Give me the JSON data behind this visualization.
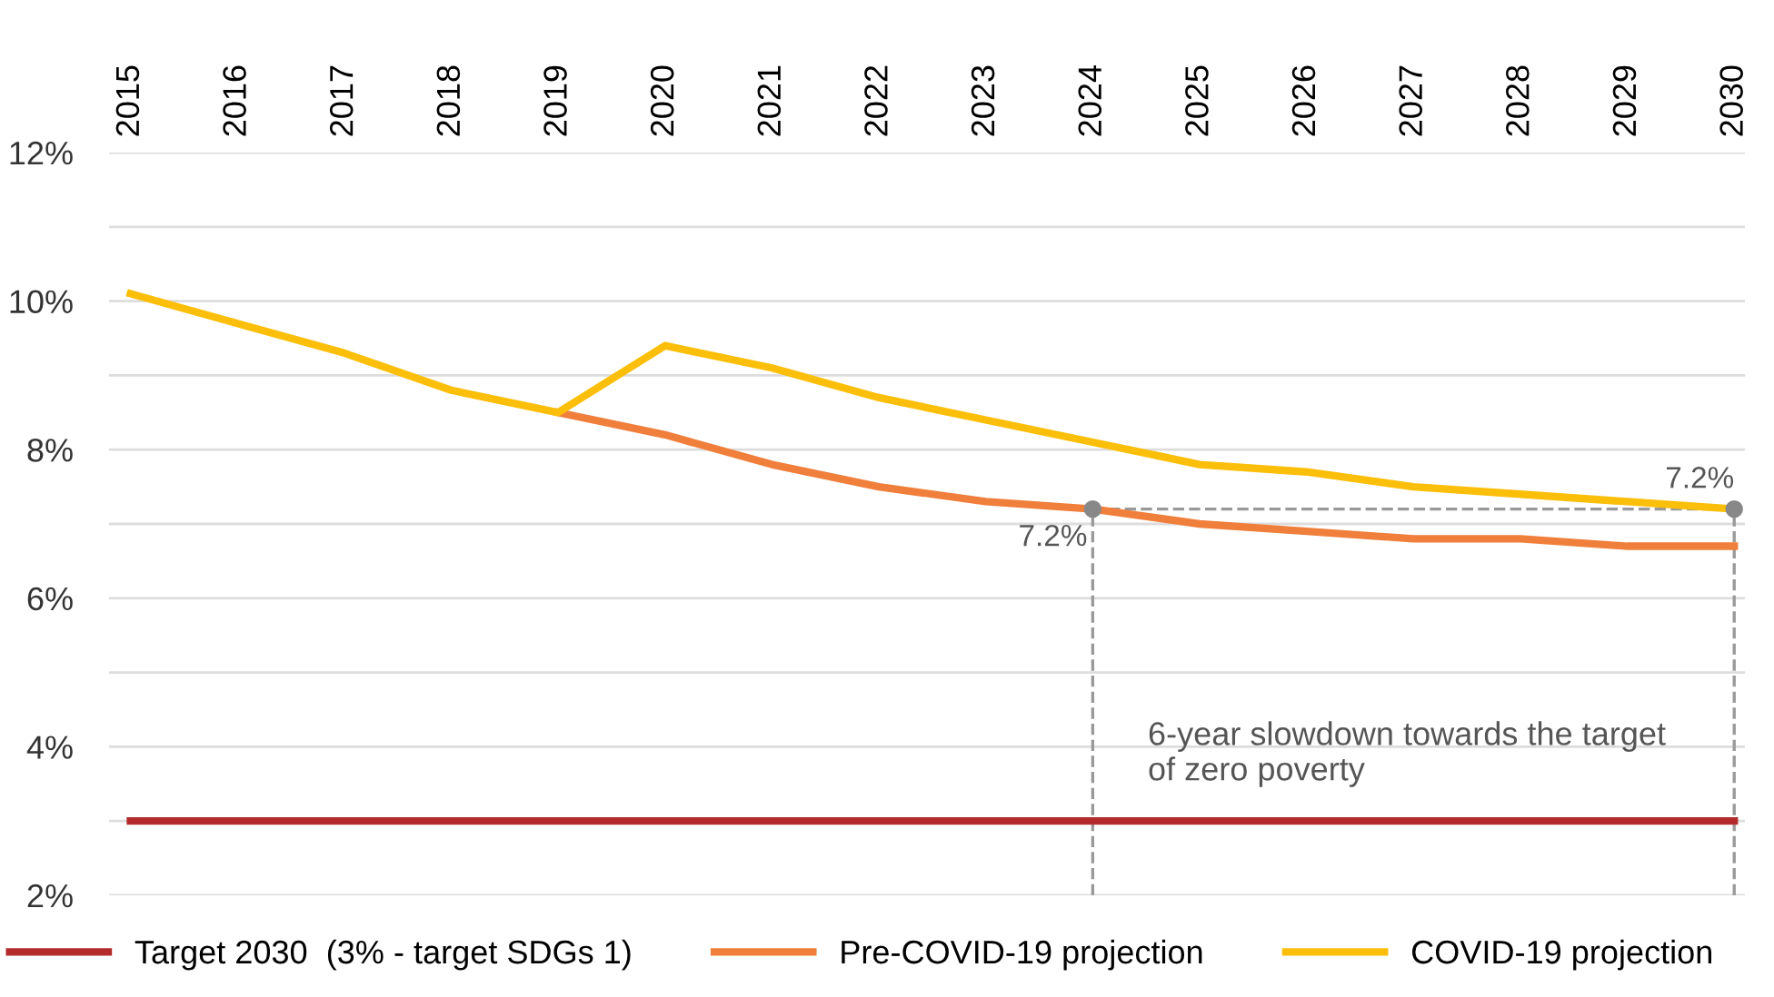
{
  "chart_data": {
    "type": "line",
    "x": [
      2015,
      2016,
      2017,
      2018,
      2019,
      2020,
      2021,
      2022,
      2023,
      2024,
      2025,
      2026,
      2027,
      2028,
      2029,
      2030
    ],
    "series": [
      {
        "name": "Target 2030  (3% - target SDGs 1)",
        "color": "#b22a2a",
        "values": [
          3,
          3,
          3,
          3,
          3,
          3,
          3,
          3,
          3,
          3,
          3,
          3,
          3,
          3,
          3,
          3
        ]
      },
      {
        "name": "Pre-COVID-19 projection",
        "color": "#f07f3c",
        "values": [
          null,
          null,
          null,
          null,
          8.5,
          8.2,
          7.8,
          7.5,
          7.3,
          7.2,
          7.0,
          6.9,
          6.8,
          6.8,
          6.7,
          6.7
        ]
      },
      {
        "name": "COVID-19 projection",
        "color": "#fbbf0a",
        "values": [
          10.1,
          9.7,
          9.3,
          8.8,
          8.5,
          9.4,
          9.1,
          8.7,
          8.4,
          8.1,
          7.8,
          7.7,
          7.5,
          7.4,
          7.3,
          7.2
        ]
      }
    ],
    "xlim": [
      2014.8,
      2030.1
    ],
    "xticks": [
      2015,
      2016,
      2017,
      2018,
      2019,
      2020,
      2021,
      2022,
      2023,
      2024,
      2025,
      2026,
      2027,
      2028,
      2029,
      2030
    ],
    "ylim": [
      2,
      12
    ],
    "yticks": [
      {
        "value": 2,
        "label": "2%"
      },
      {
        "value": 3,
        "label": null
      },
      {
        "value": 4,
        "label": "4%"
      },
      {
        "value": 5,
        "label": null
      },
      {
        "value": 6,
        "label": "6%"
      },
      {
        "value": 7,
        "label": null
      },
      {
        "value": 8,
        "label": "8%"
      },
      {
        "value": 9,
        "label": null
      },
      {
        "value": 10,
        "label": "10%"
      },
      {
        "value": 11,
        "label": null
      },
      {
        "value": 12,
        "label": "12%"
      }
    ],
    "grid": "y",
    "legend": "bottom",
    "marker": "none",
    "line_style": "solid",
    "annotations": [
      {
        "text": "7.2%",
        "x": 2024,
        "y": 7.2
      },
      {
        "text": "7.2%",
        "x": 2030,
        "y": 7.2
      },
      "6-year slowdown towards the target\nof zero poverty"
    ]
  }
}
